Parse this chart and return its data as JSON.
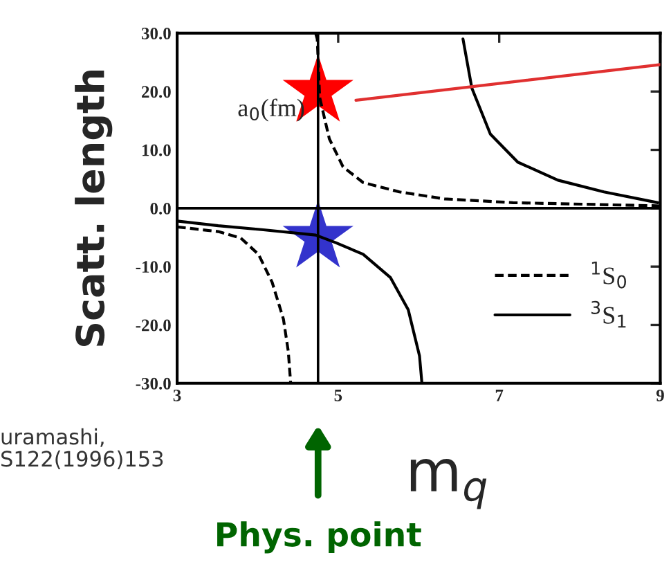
{
  "chart_data": {
    "type": "line",
    "xlabel": "m$_{q}$",
    "ylabel": "Scatt. length",
    "xlim": [
      3,
      9
    ],
    "ylim": [
      -30,
      30
    ],
    "xticks": [
      3,
      5,
      7,
      9
    ],
    "yticks": [
      {
        "value": 30,
        "label": "30.0"
      },
      {
        "value": 20,
        "label": "20.0"
      },
      {
        "value": 10,
        "label": "10.0"
      },
      {
        "value": 0,
        "label": "0.0"
      },
      {
        "value": -10,
        "label": "-10.0"
      },
      {
        "value": -20,
        "label": "-20.0"
      },
      {
        "value": -30,
        "label": "-30.0"
      }
    ],
    "series": [
      {
        "name": "$^{1}$S$_{0}$",
        "color": "#000000",
        "line_style": "dashed",
        "x": [
          3,
          3.51,
          3.79,
          4.01,
          4.18,
          4.32,
          4.38,
          4.41,
          4.6,
          4.72,
          4.74,
          4.77,
          4.89,
          5.06,
          5.31,
          5.76,
          6.32,
          7.17,
          9
        ],
        "values": [
          -3.2,
          -4.0,
          -5.1,
          -7.9,
          -12.7,
          -19,
          -24.5,
          -30,
          null,
          30,
          29,
          19,
          11.9,
          7.1,
          4.4,
          2.8,
          1.6,
          0.95,
          0.4
        ]
      },
      {
        "name": "$^{3}$S$_{1}$",
        "color": "#000000",
        "line_style": "solid",
        "x": [
          3,
          3.51,
          4.07,
          4.72,
          4.97,
          5.31,
          5.65,
          5.87,
          6.01,
          6.04,
          6.3,
          6.55,
          6.66,
          6.89,
          7.23,
          7.73,
          8.3,
          8.97
        ],
        "values": [
          -2.2,
          -3.0,
          -3.7,
          -4.6,
          -5.9,
          -7.9,
          -11.9,
          -17.4,
          -25.3,
          -30,
          null,
          29,
          20.6,
          12.7,
          7.9,
          4.8,
          2.8,
          0.95
        ]
      },
      {
        "type": "line",
        "color": "#e03030",
        "line_style": "solid",
        "x": [
          5.22,
          9
        ],
        "values": [
          18.5,
          24.6
        ]
      },
      {
        "type": "scatter",
        "color": "#ff0000",
        "marker": "star",
        "x": [
          4.75
        ],
        "values": [
          20
        ]
      },
      {
        "type": "scatter",
        "color": "#3333cc",
        "marker": "star",
        "x": [
          4.75
        ],
        "values": [
          -5
        ]
      }
    ],
    "ref_lines": [
      {
        "axis": "y",
        "value": 0
      },
      {
        "axis": "x",
        "value": 4.75
      }
    ],
    "annotations": [
      "a$_{0}$(fm)",
      "uramashi,\nS122(1996)153",
      "Phys. point"
    ],
    "legend": "center right"
  }
}
